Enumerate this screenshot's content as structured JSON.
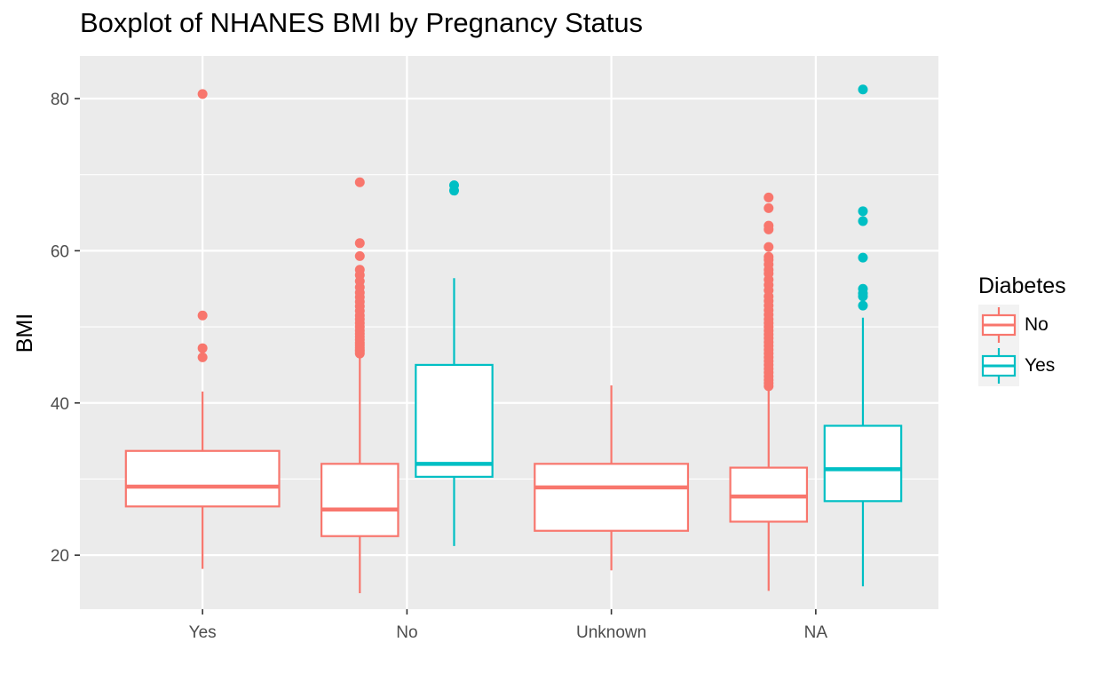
{
  "chart_data": {
    "type": "boxplot",
    "title": "Boxplot of NHANES BMI by Pregnancy Status",
    "xlabel": "",
    "ylabel": "BMI",
    "ylim": [
      12.9,
      85.6
    ],
    "yticks": [
      20,
      40,
      60,
      80
    ],
    "categories": [
      "Yes",
      "No",
      "Unknown",
      "NA"
    ],
    "legend": {
      "title": "Diabetes",
      "position": "right",
      "entries": [
        {
          "label": "No",
          "color": "#F8766D"
        },
        {
          "label": "Yes",
          "color": "#00BFC4"
        }
      ]
    },
    "colors": {
      "panel": "#EBEBEB",
      "grid": "#FFFFFF",
      "axis_text": "#4D4D4D"
    },
    "boxes": [
      {
        "category": "Yes",
        "group": "No",
        "lower_whisker": 18.2,
        "q1": 26.4,
        "median": 29.0,
        "q3": 33.7,
        "upper_whisker": 41.5,
        "outliers": [
          46.0,
          47.2,
          51.5,
          80.6
        ]
      },
      {
        "category": "No",
        "group": "No",
        "lower_whisker": 15.0,
        "q1": 22.5,
        "median": 26.0,
        "q3": 32.0,
        "upper_whisker": 46.3,
        "outliers": [
          46.5,
          46.8,
          47.0,
          47.3,
          47.6,
          47.9,
          48.3,
          48.7,
          49.1,
          49.5,
          50.0,
          50.5,
          51.0,
          51.5,
          52.1,
          52.7,
          53.3,
          53.9,
          54.5,
          55.2,
          56.0,
          56.8,
          57.5,
          59.3,
          61.0,
          69.0
        ]
      },
      {
        "category": "No",
        "group": "Yes",
        "lower_whisker": 21.2,
        "q1": 30.3,
        "median": 32.0,
        "q3": 45.0,
        "upper_whisker": 56.4,
        "outliers": [
          67.9,
          68.6
        ]
      },
      {
        "category": "Unknown",
        "group": "No",
        "lower_whisker": 18.0,
        "q1": 23.2,
        "median": 28.9,
        "q3": 32.0,
        "upper_whisker": 42.3,
        "outliers": []
      },
      {
        "category": "NA",
        "group": "No",
        "lower_whisker": 15.3,
        "q1": 24.4,
        "median": 27.7,
        "q3": 31.5,
        "upper_whisker": 42.0,
        "outliers": [
          42.2,
          42.6,
          43.0,
          43.5,
          44.0,
          44.5,
          45.0,
          45.5,
          46.0,
          46.5,
          47.0,
          47.5,
          48.0,
          48.5,
          49.0,
          49.5,
          50.0,
          50.5,
          51.0,
          51.6,
          52.2,
          52.8,
          53.4,
          54.0,
          54.8,
          55.5,
          56.2,
          57.0,
          57.5,
          58.2,
          58.8,
          59.2,
          60.5,
          62.8,
          63.3,
          65.6,
          67.0
        ]
      },
      {
        "category": "NA",
        "group": "Yes",
        "lower_whisker": 15.9,
        "q1": 27.1,
        "median": 31.3,
        "q3": 37.0,
        "upper_whisker": 51.2,
        "outliers": [
          52.8,
          54.0,
          54.4,
          55.0,
          59.1,
          63.9,
          65.2,
          81.2
        ]
      }
    ]
  }
}
